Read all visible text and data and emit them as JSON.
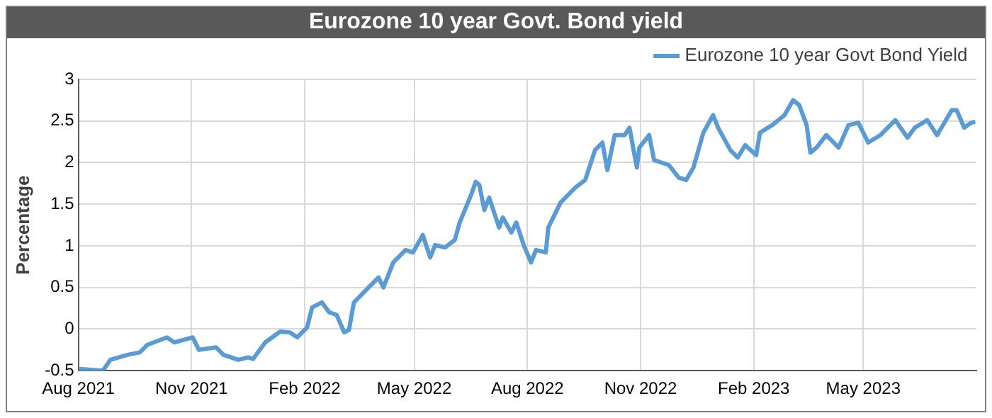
{
  "chart_data": {
    "type": "line",
    "title": "Eurozone 10 year Govt. Bond yield",
    "ylabel": "Percentage",
    "x": [
      "2021-08-02",
      "2021-08-21",
      "2021-08-27",
      "2021-09-10",
      "2021-09-20",
      "2021-09-26",
      "2021-10-12",
      "2021-10-18",
      "2021-11-02",
      "2021-11-07",
      "2021-11-21",
      "2021-11-27",
      "2021-12-09",
      "2021-12-17",
      "2021-12-21",
      "2021-12-31",
      "2022-01-12",
      "2022-01-20",
      "2022-01-26",
      "2022-02-03",
      "2022-02-07",
      "2022-02-15",
      "2022-02-21",
      "2022-02-27",
      "2022-03-05",
      "2022-03-09",
      "2022-03-13",
      "2022-03-25",
      "2022-04-02",
      "2022-04-06",
      "2022-04-14",
      "2022-04-24",
      "2022-04-30",
      "2022-05-08",
      "2022-05-14",
      "2022-05-18",
      "2022-05-26",
      "2022-06-03",
      "2022-06-07",
      "2022-06-17",
      "2022-06-20",
      "2022-06-23",
      "2022-06-27",
      "2022-07-01",
      "2022-07-09",
      "2022-07-12",
      "2022-07-19",
      "2022-07-23",
      "2022-07-29",
      "2022-08-04",
      "2022-08-08",
      "2022-08-16",
      "2022-08-18",
      "2022-08-28",
      "2022-09-09",
      "2022-09-17",
      "2022-09-25",
      "2022-10-01",
      "2022-10-05",
      "2022-10-11",
      "2022-10-19",
      "2022-10-23",
      "2022-10-29",
      "2022-10-31",
      "2022-11-08",
      "2022-11-12",
      "2022-11-18",
      "2022-11-24",
      "2022-12-02",
      "2022-12-08",
      "2022-12-14",
      "2022-12-22",
      "2022-12-30",
      "2023-01-03",
      "2023-01-13",
      "2023-01-19",
      "2023-01-25",
      "2023-02-03",
      "2023-02-06",
      "2023-02-16",
      "2023-02-26",
      "2023-03-05",
      "2023-03-10",
      "2023-03-16",
      "2023-03-19",
      "2023-03-24",
      "2023-04-01",
      "2023-04-11",
      "2023-04-19",
      "2023-04-27",
      "2023-05-05",
      "2023-05-15",
      "2023-05-27",
      "2023-06-06",
      "2023-06-12",
      "2023-06-22",
      "2023-06-30",
      "2023-07-12",
      "2023-07-16",
      "2023-07-22",
      "2023-07-28",
      "2023-07-31"
    ],
    "series": [
      {
        "name": "Eurozone 10 year Govt Bond Yield",
        "color": "#5b9bd5",
        "values": [
          -0.48,
          -0.5,
          -0.37,
          -0.31,
          -0.28,
          -0.19,
          -0.1,
          -0.16,
          -0.1,
          -0.25,
          -0.22,
          -0.31,
          -0.37,
          -0.34,
          -0.36,
          -0.16,
          -0.03,
          -0.04,
          -0.1,
          0.02,
          0.26,
          0.32,
          0.2,
          0.17,
          -0.04,
          -0.01,
          0.32,
          0.5,
          0.62,
          0.5,
          0.8,
          0.95,
          0.92,
          1.13,
          0.86,
          1.01,
          0.98,
          1.07,
          1.28,
          1.64,
          1.77,
          1.73,
          1.43,
          1.58,
          1.22,
          1.34,
          1.16,
          1.28,
          1.01,
          0.8,
          0.95,
          0.92,
          1.22,
          1.52,
          1.7,
          1.79,
          2.15,
          2.24,
          1.91,
          2.33,
          2.33,
          2.42,
          1.94,
          2.18,
          2.33,
          2.03,
          2.0,
          1.97,
          1.82,
          1.79,
          1.94,
          2.36,
          2.57,
          2.42,
          2.15,
          2.06,
          2.21,
          2.09,
          2.36,
          2.45,
          2.57,
          2.75,
          2.69,
          2.45,
          2.12,
          2.18,
          2.33,
          2.18,
          2.45,
          2.48,
          2.24,
          2.33,
          2.51,
          2.3,
          2.42,
          2.51,
          2.33,
          2.63,
          2.63,
          2.42,
          2.48,
          2.49
        ]
      }
    ],
    "xlim": [
      "2021-08-01",
      "2023-08-01"
    ],
    "xticks": [
      {
        "value": "2021-08-01",
        "label": "Aug 2021"
      },
      {
        "value": "2021-11-01",
        "label": "Nov 2021"
      },
      {
        "value": "2022-02-01",
        "label": "Feb 2022"
      },
      {
        "value": "2022-05-01",
        "label": "May 2022"
      },
      {
        "value": "2022-08-01",
        "label": "Aug 2022"
      },
      {
        "value": "2022-11-01",
        "label": "Nov 2022"
      },
      {
        "value": "2023-02-01",
        "label": "Feb 2023"
      },
      {
        "value": "2023-05-01",
        "label": "May 2023"
      }
    ],
    "ylim": [
      -0.5,
      3
    ],
    "yticks": [
      -0.5,
      0,
      0.5,
      1,
      1.5,
      2,
      2.5,
      3
    ],
    "grid": true,
    "legend": "top right",
    "marker": "none",
    "line_style": "solid"
  }
}
